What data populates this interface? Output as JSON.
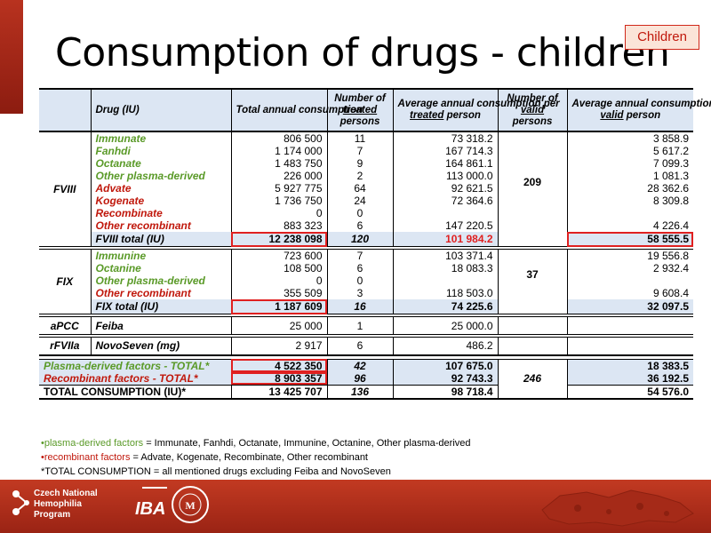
{
  "title": "Consumption of drugs - children",
  "tag": "Children",
  "header": {
    "drug": "Drug (IU)",
    "total_annual_consumption": "Total annual consumption",
    "treated_line1": "Number of",
    "treated_u": "treated",
    "treated_line3": "persons",
    "avg_treated_line1": "Average annual consumption per",
    "avg_treated_u": "treated",
    "avg_treated_rest": "person",
    "valid_line1": "Number of",
    "valid_u": "valid",
    "valid_line3": "persons",
    "avg_valid_line1": "Average annual consumption per",
    "avg_valid_u": "valid",
    "avg_valid_rest": "person"
  },
  "fviii": {
    "group": "FVIII",
    "valid_persons": "209",
    "rows": [
      {
        "drug": "Immunate",
        "total": "806 500",
        "treated": "11",
        "avg_treated": "73 318.2",
        "avg_valid": "3 858.9"
      },
      {
        "drug": "Fanhdi",
        "total": "1 174 000",
        "treated": "7",
        "avg_treated": "167 714.3",
        "avg_valid": "5 617.2"
      },
      {
        "drug": "Octanate",
        "total": "1 483 750",
        "treated": "9",
        "avg_treated": "164 861.1",
        "avg_valid": "7 099.3"
      },
      {
        "drug": "Other plasma-derived",
        "total": "226 000",
        "treated": "2",
        "avg_treated": "113 000.0",
        "avg_valid": "1 081.3"
      },
      {
        "drug": "Advate",
        "total": "5 927 775",
        "treated": "64",
        "avg_treated": "92 621.5",
        "avg_valid": "28 362.6"
      },
      {
        "drug": "Kogenate",
        "total": "1 736 750",
        "treated": "24",
        "avg_treated": "72 364.6",
        "avg_valid": "8 309.8"
      },
      {
        "drug": "Recombinate",
        "total": "0",
        "treated": "0",
        "avg_treated": "",
        "avg_valid": ""
      },
      {
        "drug": "Other recombinant",
        "total": "883 323",
        "treated": "6",
        "avg_treated": "147 220.5",
        "avg_valid": "4 226.4"
      }
    ],
    "total": {
      "label": "FVIII total (IU)",
      "total": "12 238 098",
      "treated": "120",
      "avg_treated": "101 984.2",
      "avg_valid": "58 555.5"
    }
  },
  "fix": {
    "group": "FIX",
    "valid_persons": "37",
    "rows": [
      {
        "drug": "Immunine",
        "total": "723 600",
        "treated": "7",
        "avg_treated": "103 371.4",
        "avg_valid": "19 556.8"
      },
      {
        "drug": "Octanine",
        "total": "108 500",
        "treated": "6",
        "avg_treated": "18 083.3",
        "avg_valid": "2 932.4"
      },
      {
        "drug": "Other plasma-derived",
        "total": "0",
        "treated": "0",
        "avg_treated": "",
        "avg_valid": ""
      },
      {
        "drug": "Other recombinant",
        "total": "355 509",
        "treated": "3",
        "avg_treated": "118 503.0",
        "avg_valid": "9 608.4"
      }
    ],
    "total": {
      "label": "FIX total (IU)",
      "total": "1 187 609",
      "treated": "16",
      "avg_treated": "74 225.6",
      "avg_valid": "32 097.5"
    }
  },
  "apcc": {
    "group": "aPCC",
    "drug": "Feiba",
    "total": "25 000",
    "treated": "1",
    "avg_treated": "25 000.0"
  },
  "rfviia": {
    "group": "rFVIIa",
    "drug": "NovoSeven (mg)",
    "total": "2 917",
    "treated": "6",
    "avg_treated": "486.2"
  },
  "totals": {
    "valid_persons": "246",
    "plasma": {
      "label": "Plasma-derived factors - TOTAL*",
      "total": "4 522 350",
      "treated": "42",
      "avg_treated": "107 675.0",
      "avg_valid": "18 383.5"
    },
    "recomb": {
      "label": "Recombinant factors - TOTAL*",
      "total": "8 903 357",
      "treated": "96",
      "avg_treated": "92 743.3",
      "avg_valid": "36 192.5"
    },
    "all": {
      "label": "TOTAL CONSUMPTION (IU)*",
      "total": "13 425 707",
      "treated": "136",
      "avg_treated": "98 718.4",
      "avg_valid": "54 576.0"
    }
  },
  "notes": {
    "n1_label": "plasma-derived factors",
    "n1_text": " = Immunate, Fanhdi, Octanate, Immunine, Octanine, Other plasma-derived",
    "n2_label": "recombinant factors",
    "n2_text": " = Advate, Kogenate, Recombinate, Other recombinant",
    "n3": "*TOTAL CONSUMPTION = all mentioned drugs excluding Feiba and NovoSeven"
  },
  "footer": {
    "logo1_l1": "Czech National",
    "logo1_l2": "Hemophilia",
    "logo1_l3": "Program",
    "logo2": "IBA"
  },
  "colors": {
    "plasma": "#5a9a28",
    "recombinant": "#c0180c",
    "header_bg": "#dce6f3",
    "footer": "#b02c1a"
  }
}
